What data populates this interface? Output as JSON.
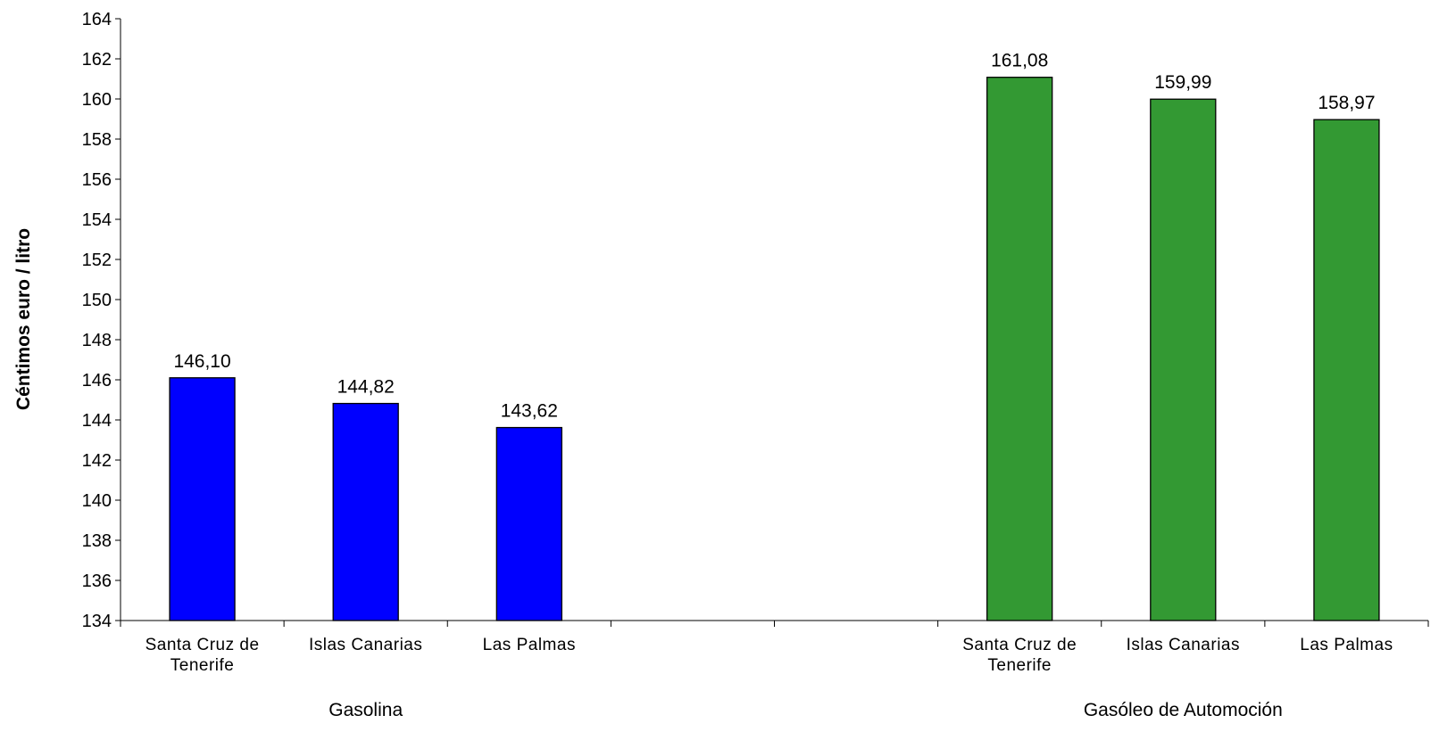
{
  "chart_data": {
    "type": "bar",
    "ylabel": "Céntimos euro / litro",
    "ylim": [
      134,
      164
    ],
    "ytick_step": 2,
    "grid": false,
    "groups": [
      {
        "name": "Gasolina",
        "color": "#0000ff",
        "categories": [
          "Santa Cruz de Tenerife",
          "Islas Canarias",
          "Las Palmas"
        ],
        "category_lines": [
          [
            "Santa Cruz de",
            "Tenerife"
          ],
          [
            "Islas Canarias"
          ],
          [
            "Las Palmas"
          ]
        ],
        "values": [
          146.1,
          144.82,
          143.62
        ],
        "value_labels": [
          "146,10",
          "144,82",
          "143,62"
        ]
      },
      {
        "name": "Gasóleo de Automoción",
        "color": "#339933",
        "categories": [
          "Santa Cruz de Tenerife",
          "Islas Canarias",
          "Las Palmas"
        ],
        "category_lines": [
          [
            "Santa Cruz de",
            "Tenerife"
          ],
          [
            "Islas Canarias"
          ],
          [
            "Las Palmas"
          ]
        ],
        "values": [
          161.08,
          159.99,
          158.97
        ],
        "value_labels": [
          "161,08",
          "159,99",
          "158,97"
        ]
      }
    ]
  }
}
